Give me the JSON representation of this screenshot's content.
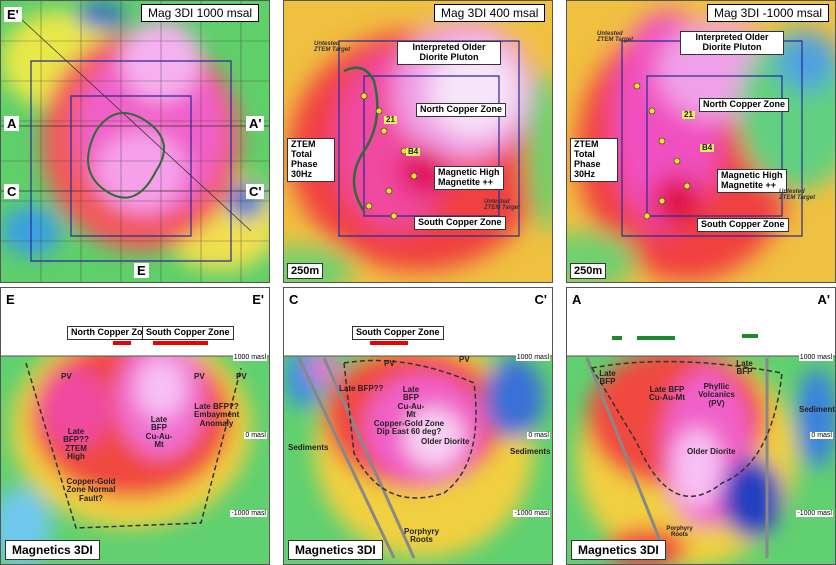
{
  "plan_maps": [
    {
      "title": "Mag 3DI 1000 msal",
      "labels": [
        "E'",
        "A",
        "A'",
        "C",
        "C'",
        "E"
      ]
    },
    {
      "title": "Mag 3DI 400 msal",
      "labels": [
        "Interpreted Older Diorite Pluton",
        "North Copper Zone",
        "ZTEM Total Phase 30Hz",
        "Magnetic High Magnetite ++",
        "South Copper Zone",
        "B4",
        "21"
      ],
      "targets": [
        "Untested ZTEM Target",
        "Untested ZTEM Target"
      ],
      "scale": "250m"
    },
    {
      "title": "Mag 3DI -1000 msal",
      "labels": [
        "Interpreted Older Diorite Pluton",
        "North Copper Zone",
        "ZTEM Total Phase 30Hz",
        "Magnetic High Magnetite ++",
        "South Copper Zone",
        "B4",
        "21"
      ],
      "targets": [
        "Untested ZTEM Target",
        "Untested ZTEM Target"
      ],
      "scale": "250m"
    }
  ],
  "sections": [
    {
      "left": "E",
      "right": "E'",
      "zones": [
        "North Copper Zone",
        "South Copper Zone"
      ],
      "elevations": [
        "1000 masl",
        "0 masl",
        "-1000 masl"
      ],
      "labels": [
        "PV",
        "PV",
        "PV",
        "Late BFP?? ZTEM High",
        "Late BFP Cu-Au-Mt",
        "Late BFP?? Embayment Anomaly",
        "Copper-Gold Zone Normal Fault?"
      ],
      "footer": "Magnetics 3DI"
    },
    {
      "left": "C",
      "right": "C'",
      "zones": [
        "South Copper Zone"
      ],
      "elevations": [
        "1000 masl",
        "0 masl",
        "-1000 masl"
      ],
      "labels": [
        "PV",
        "PV",
        "Late BFP??",
        "Late BFP Cu-Au-Mt",
        "Copper-Gold Zone Dip East 60 deg?",
        "Older Diorite",
        "Sediments",
        "Sediments",
        "Porphyry Roots"
      ],
      "footer": "Magnetics 3DI"
    },
    {
      "left": "A",
      "right": "A'",
      "elevations": [
        "1000 masl",
        "0 masl",
        "-1000 masl"
      ],
      "labels": [
        "Late BFP",
        "Late BFP Cu-Au-Mt",
        "Phyllic Volcanics (PV)",
        "Late BFP",
        "Older Diorite",
        "Sediments",
        "Porphyry Roots"
      ],
      "footer": "Magnetics 3DI"
    }
  ]
}
